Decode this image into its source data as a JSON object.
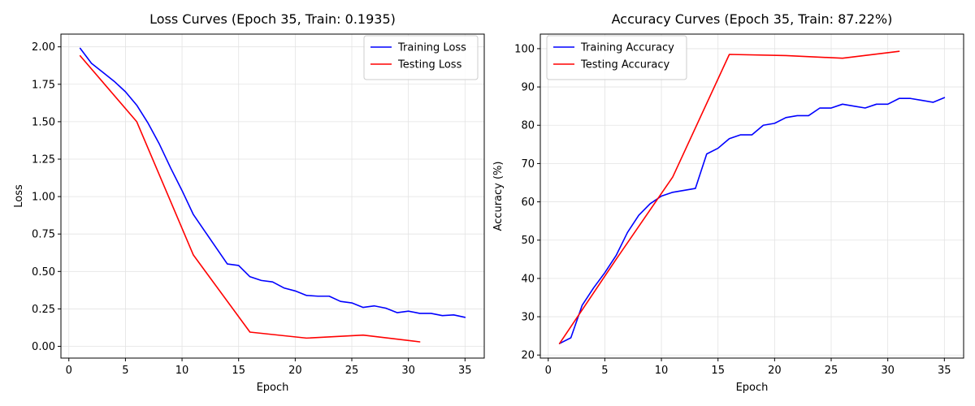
{
  "chart_data": [
    {
      "type": "line",
      "title": "Loss Curves (Epoch 35, Train: 0.1935)",
      "xlabel": "Epoch",
      "ylabel": "Loss",
      "xlim": [
        -0.7,
        36.7
      ],
      "ylim": [
        -0.0785,
        2.085
      ],
      "xticks": [
        0,
        5,
        10,
        15,
        20,
        25,
        30,
        35
      ],
      "xtick_labels": [
        "0",
        "5",
        "10",
        "15",
        "20",
        "25",
        "30",
        "35"
      ],
      "yticks": [
        0.0,
        0.25,
        0.5,
        0.75,
        1.0,
        1.25,
        1.5,
        1.75,
        2.0
      ],
      "ytick_labels": [
        "0.00",
        "0.25",
        "0.50",
        "0.75",
        "1.00",
        "1.25",
        "1.50",
        "1.75",
        "2.00"
      ],
      "grid": true,
      "legend_position": "top-right",
      "series": [
        {
          "name": "Training Loss",
          "color": "#0000ff",
          "x": [
            1,
            2,
            3,
            4,
            5,
            6,
            7,
            8,
            9,
            10,
            11,
            12,
            13,
            14,
            15,
            16,
            17,
            18,
            19,
            20,
            21,
            22,
            23,
            24,
            25,
            26,
            27,
            28,
            29,
            30,
            31,
            32,
            33,
            34,
            35
          ],
          "y": [
            1.99,
            1.89,
            1.83,
            1.77,
            1.7,
            1.61,
            1.49,
            1.35,
            1.19,
            1.04,
            0.88,
            0.77,
            0.66,
            0.55,
            0.54,
            0.465,
            0.44,
            0.43,
            0.39,
            0.37,
            0.34,
            0.335,
            0.335,
            0.3,
            0.29,
            0.26,
            0.27,
            0.255,
            0.225,
            0.235,
            0.22,
            0.22,
            0.205,
            0.21,
            0.1935
          ]
        },
        {
          "name": "Testing Loss",
          "color": "#ff0000",
          "x": [
            1,
            6,
            11,
            16,
            21,
            26,
            31
          ],
          "y": [
            1.94,
            1.5,
            0.61,
            0.095,
            0.055,
            0.075,
            0.03
          ]
        }
      ]
    },
    {
      "type": "line",
      "title": "Accuracy Curves (Epoch 35, Train: 87.22%)",
      "xlabel": "Epoch",
      "ylabel": "Accuracy (%)",
      "xlim": [
        -0.7,
        36.7
      ],
      "ylim": [
        19.2,
        103.8
      ],
      "xticks": [
        0,
        5,
        10,
        15,
        20,
        25,
        30,
        35
      ],
      "xtick_labels": [
        "0",
        "5",
        "10",
        "15",
        "20",
        "25",
        "30",
        "35"
      ],
      "yticks": [
        20,
        30,
        40,
        50,
        60,
        70,
        80,
        90,
        100
      ],
      "ytick_labels": [
        "20",
        "30",
        "40",
        "50",
        "60",
        "70",
        "80",
        "90",
        "100"
      ],
      "grid": true,
      "legend_position": "top-left",
      "series": [
        {
          "name": "Training Accuracy",
          "color": "#0000ff",
          "x": [
            1,
            2,
            3,
            4,
            5,
            6,
            7,
            8,
            9,
            10,
            11,
            12,
            13,
            14,
            15,
            16,
            17,
            18,
            19,
            20,
            21,
            22,
            23,
            24,
            25,
            26,
            27,
            28,
            29,
            30,
            31,
            32,
            33,
            34,
            35
          ],
          "y": [
            23.0,
            24.5,
            33.0,
            37.5,
            41.5,
            46.0,
            52.0,
            56.5,
            59.5,
            61.5,
            62.5,
            63.0,
            63.5,
            72.5,
            74.0,
            76.5,
            77.5,
            77.5,
            80.0,
            80.5,
            82.0,
            82.5,
            82.5,
            84.5,
            84.5,
            85.5,
            85.0,
            84.5,
            85.5,
            85.5,
            87.0,
            87.0,
            86.5,
            86.0,
            87.22
          ]
        },
        {
          "name": "Testing Accuracy",
          "color": "#ff0000",
          "x": [
            1,
            6,
            11,
            16,
            21,
            26,
            31
          ],
          "y": [
            23.0,
            45.0,
            66.5,
            98.5,
            98.2,
            97.5,
            99.3
          ]
        }
      ]
    }
  ]
}
